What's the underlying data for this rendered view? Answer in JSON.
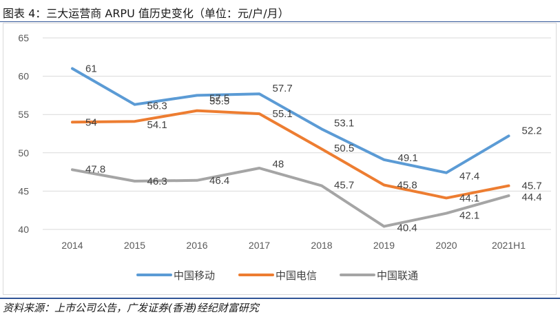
{
  "header": {
    "title_prefix": "图表 4：",
    "title_main": "三大运营商 ARPU 值历史变化",
    "title_unit": "（单位：元/户/月）"
  },
  "footer": {
    "source": "资料来源：上市公司公告，广发证券(香港)经纪财富研究"
  },
  "colors": {
    "中国移动": "#5b9bd5",
    "中国电信": "#ed7d31",
    "中国联通": "#a5a5a5",
    "rule": "#2f5496"
  },
  "chart_data": {
    "type": "line",
    "title": "三大运营商 ARPU 值历史变化",
    "xlabel": "",
    "ylabel": "元/户/月",
    "categories": [
      "2014",
      "2015",
      "2016",
      "2017",
      "2018",
      "2019",
      "2020",
      "2021H1"
    ],
    "ylim": [
      40,
      65
    ],
    "yticks": [
      40,
      45,
      50,
      55,
      60,
      65
    ],
    "grid": true,
    "legend_position": "bottom",
    "series": [
      {
        "name": "中国移动",
        "values": [
          61,
          56.3,
          57.5,
          57.7,
          53.1,
          49.1,
          47.4,
          52.2
        ]
      },
      {
        "name": "中国电信",
        "values": [
          54,
          54.1,
          55.5,
          55.1,
          50.5,
          45.8,
          44.1,
          45.7
        ]
      },
      {
        "name": "中国联通",
        "values": [
          47.8,
          46.3,
          46.4,
          48,
          45.7,
          40.4,
          42.1,
          44.4
        ]
      }
    ]
  }
}
